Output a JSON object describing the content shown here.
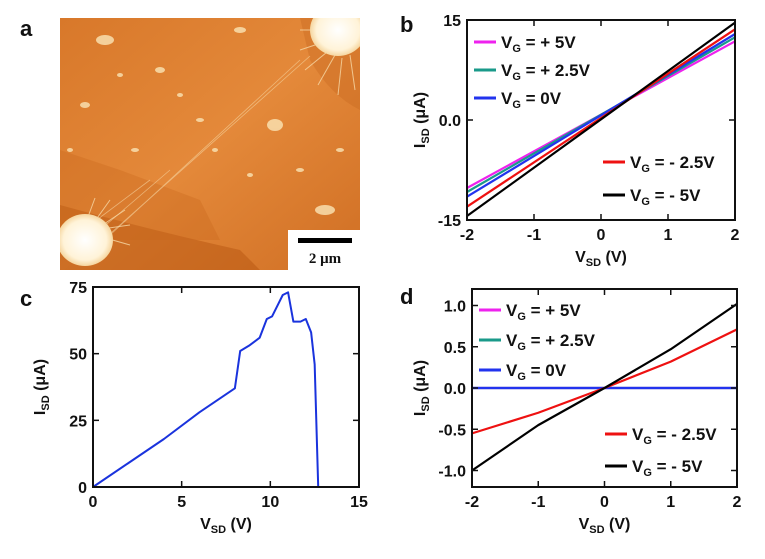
{
  "panel_letters": {
    "a": "a",
    "b": "b",
    "c": "c",
    "d": "d"
  },
  "image_a": {
    "scale_bar_label": "2 μm"
  },
  "chart_data": [
    {
      "id": "b",
      "type": "line",
      "xlabel": {
        "main": "V",
        "sub": "SD",
        "unit": " (V)"
      },
      "ylabel": {
        "main": "I",
        "sub": "SD",
        "unit": " (μA)"
      },
      "xlim": [
        -2,
        2
      ],
      "ylim": [
        -15,
        15
      ],
      "xticks": [
        "-2",
        "-1",
        "0",
        "1",
        "2"
      ],
      "yticks": [
        "-15",
        "0.0",
        "15"
      ],
      "x": [
        -2,
        2
      ],
      "series": [
        {
          "name": "V_G = + 5V",
          "label": {
            "a": "V",
            "b": "G",
            "c": " = + 5V"
          },
          "color": "#ee22ee",
          "values": [
            -10.2,
            11.8
          ]
        },
        {
          "name": "V_G = + 2.5V",
          "label": {
            "a": "V",
            "b": "G",
            "c": " = + 2.5V"
          },
          "color": "#1a9a8a",
          "values": [
            -10.8,
            12.4
          ]
        },
        {
          "name": "V_G = 0V",
          "label": {
            "a": "V",
            "b": "G",
            "c": " =  0V"
          },
          "color": "#2233ee",
          "values": [
            -11.5,
            12.9
          ]
        },
        {
          "name": "V_G = - 2.5V",
          "label": {
            "a": "V",
            "b": "G",
            "c": " = - 2.5V"
          },
          "color": "#ee1111",
          "values": [
            -13.0,
            13.6
          ]
        },
        {
          "name": "V_G = - 5V",
          "label": {
            "a": "V",
            "b": "G",
            "c": " = - 5V"
          },
          "color": "#000000",
          "values": [
            -14.4,
            14.6
          ]
        }
      ]
    },
    {
      "id": "c",
      "type": "line",
      "xlabel": {
        "main": "V",
        "sub": "SD",
        "unit": " (V)"
      },
      "ylabel": {
        "main": "I",
        "sub": "SD",
        "unit": " (μA)"
      },
      "xlim": [
        0,
        15
      ],
      "ylim": [
        0,
        75
      ],
      "xticks": [
        "0",
        "5",
        "10",
        "15"
      ],
      "yticks": [
        "0",
        "25",
        "50",
        "75"
      ],
      "series": [
        {
          "color": "#1a33dd",
          "points": [
            [
              0,
              0
            ],
            [
              2,
              9
            ],
            [
              4,
              18
            ],
            [
              6,
              28
            ],
            [
              8,
              37
            ],
            [
              8.3,
              51
            ],
            [
              8.8,
              53
            ],
            [
              9.4,
              56
            ],
            [
              9.8,
              63
            ],
            [
              10.1,
              64
            ],
            [
              10.4,
              68
            ],
            [
              10.7,
              72
            ],
            [
              11.0,
              73
            ],
            [
              11.3,
              62
            ],
            [
              11.7,
              62
            ],
            [
              12.0,
              63
            ],
            [
              12.3,
              58
            ],
            [
              12.5,
              46
            ],
            [
              12.7,
              0
            ],
            [
              15,
              0
            ]
          ]
        }
      ]
    },
    {
      "id": "d",
      "type": "line",
      "xlabel": {
        "main": "V",
        "sub": "SD",
        "unit": " (V)"
      },
      "ylabel": {
        "main": "I",
        "sub": "SD",
        "unit": " (μA)"
      },
      "xlim": [
        -2,
        2
      ],
      "ylim": [
        -1.2,
        1.2
      ],
      "xticks": [
        "-2",
        "-1",
        "0",
        "1",
        "2"
      ],
      "yticks": [
        "1.0",
        "0.5",
        "0.0",
        "-0.5",
        "-1.0"
      ],
      "ytick_values": [
        1.0,
        0.5,
        0.0,
        -0.5,
        -1.0
      ],
      "series": [
        {
          "name": "V_G = + 5V",
          "label": {
            "a": "V",
            "b": "G",
            "c": " = + 5V"
          },
          "color": "#ee22ee",
          "points": [
            [
              -2,
              0
            ],
            [
              2,
              0
            ]
          ]
        },
        {
          "name": "V_G = + 2.5V",
          "label": {
            "a": "V",
            "b": "G",
            "c": " = + 2.5V"
          },
          "color": "#1a9a8a",
          "points": [
            [
              -2,
              0
            ],
            [
              2,
              0
            ]
          ]
        },
        {
          "name": "V_G = 0V",
          "label": {
            "a": "V",
            "b": "G",
            "c": " =  0V"
          },
          "color": "#2233ee",
          "points": [
            [
              -2,
              0
            ],
            [
              2,
              0
            ]
          ]
        },
        {
          "name": "V_G = - 2.5V",
          "label": {
            "a": "V",
            "b": "G",
            "c": " = - 2.5V"
          },
          "color": "#ee1111",
          "points": [
            [
              -2,
              -0.55
            ],
            [
              -1,
              -0.3
            ],
            [
              0,
              0
            ],
            [
              1,
              0.32
            ],
            [
              2,
              0.71
            ]
          ]
        },
        {
          "name": "V_G = - 5V",
          "label": {
            "a": "V",
            "b": "G",
            "c": " = - 5V"
          },
          "color": "#000000",
          "points": [
            [
              -2,
              -1.0
            ],
            [
              -1,
              -0.45
            ],
            [
              0,
              0
            ],
            [
              1,
              0.47
            ],
            [
              2,
              1.02
            ]
          ]
        }
      ]
    }
  ]
}
